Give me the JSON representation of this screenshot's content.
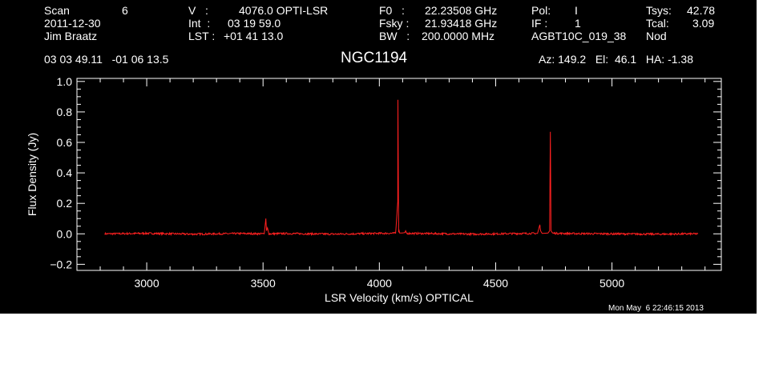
{
  "header": {
    "scan_label": "Scan",
    "scan_value": "6",
    "date": "2011-12-30",
    "observer": "Jim Braatz",
    "v_label": "V   :",
    "v_value": "4076.0 OPTI-LSR",
    "int_label": "Int  :",
    "int_value": "03 19 59.0",
    "lst_label": "LST :",
    "lst_value": "+01 41 13.0",
    "f0_label": "F0   :",
    "f0_value": "22.23508 GHz",
    "fsky_label": "Fsky :",
    "fsky_value": "21.93418 GHz",
    "bw_label": "BW   :",
    "bw_value": "200.0000 MHz",
    "pol_label": "Pol:",
    "pol_value": "I",
    "if_label": "IF :",
    "if_value": "1",
    "project": "AGBT10C_019_38",
    "tsys_label": "Tsys:",
    "tsys_value": "42.78",
    "tcal_label": "Tcal:",
    "tcal_value": "3.09",
    "mode": "Nod",
    "coords": "03 03 49.11   -01 06 13.5",
    "source": "NGC1194",
    "azelha": "Az: 149.2   El:  46.1   HA: -1.38",
    "timestamp": "Mon May  6 22:46:15 2013"
  },
  "colors": {
    "background": "#000000",
    "axes": "#ffffff",
    "spectrum": "#ff2020"
  },
  "chart_data": {
    "type": "line",
    "xlabel": "LSR Velocity (km/s) OPTICAL",
    "ylabel": "Flux Density (Jy)",
    "xlim": [
      2700,
      5470
    ],
    "ylim": [
      -0.24,
      1.02
    ],
    "xticks": [
      3000,
      3500,
      4000,
      4500,
      5000
    ],
    "xtick_labels": [
      "3000",
      "3500",
      "4000",
      "4500",
      "5000"
    ],
    "yticks": [
      -0.2,
      0,
      0.2,
      0.4,
      0.6,
      0.8,
      1.0
    ],
    "ytick_labels": [
      "−0.2",
      "0.0",
      "0.2",
      "0.4",
      "0.6",
      "0.8",
      "1.0"
    ],
    "grid": false,
    "series": [
      {
        "x": [
          2820,
          3000,
          3200,
          3400,
          3505,
          3512,
          3515,
          3519,
          3525,
          3600,
          3800,
          4000,
          4070,
          4079,
          4080,
          4082,
          4083,
          4085,
          4087,
          4095,
          4110,
          4113,
          4118,
          4200,
          4400,
          4600,
          4680,
          4690,
          4693,
          4696,
          4700,
          4725,
          4732,
          4735,
          4738,
          4745,
          4800,
          5000,
          5200,
          5370
        ],
        "y": [
          0,
          0.003,
          -0.002,
          0.002,
          0,
          0.1,
          0.02,
          0.04,
          0,
          0.002,
          -0.002,
          0.003,
          0.004,
          0.21,
          0.88,
          0.3,
          0.01,
          0.02,
          0.005,
          0.005,
          0.008,
          0.02,
          0.003,
          0.002,
          -0.002,
          0.002,
          0.003,
          0.06,
          0.02,
          0.012,
          0.003,
          0.005,
          0.02,
          0.67,
          0.02,
          0.004,
          0.002,
          0,
          -0.002,
          0
        ]
      }
    ]
  }
}
